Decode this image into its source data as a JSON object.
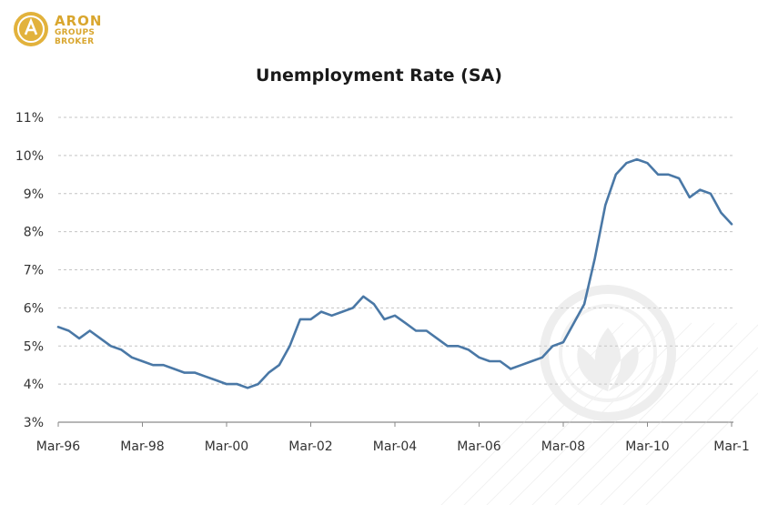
{
  "brand": {
    "line1": "ARON",
    "line2": "GROUPS",
    "line3": "BROKER",
    "color": "#d9a62e"
  },
  "chart_data": {
    "type": "line",
    "title": "Unemployment Rate (SA)",
    "xlabel": "",
    "ylabel": "",
    "ylim": [
      3,
      11
    ],
    "yticks": [
      "3%",
      "4%",
      "5%",
      "6%",
      "7%",
      "8%",
      "9%",
      "10%",
      "11%"
    ],
    "xticks": [
      "Mar-96",
      "Mar-98",
      "Mar-00",
      "Mar-02",
      "Mar-04",
      "Mar-06",
      "Mar-08",
      "Mar-10",
      "Mar-1"
    ],
    "grid": true,
    "line_color": "#4a78a6",
    "series": [
      {
        "x": [
          "1996-03",
          "1996-06",
          "1996-09",
          "1996-12",
          "1997-03",
          "1997-06",
          "1997-09",
          "1997-12",
          "1998-03",
          "1998-06",
          "1998-09",
          "1998-12",
          "1999-03",
          "1999-06",
          "1999-09",
          "1999-12",
          "2000-03",
          "2000-06",
          "2000-09",
          "2000-12",
          "2001-03",
          "2001-06",
          "2001-09",
          "2001-12",
          "2002-03",
          "2002-06",
          "2002-09",
          "2002-12",
          "2003-03",
          "2003-06",
          "2003-09",
          "2003-12",
          "2004-03",
          "2004-06",
          "2004-09",
          "2004-12",
          "2005-03",
          "2005-06",
          "2005-09",
          "2005-12",
          "2006-03",
          "2006-06",
          "2006-09",
          "2006-12",
          "2007-03",
          "2007-06",
          "2007-09",
          "2007-12",
          "2008-03",
          "2008-06",
          "2008-09",
          "2008-12",
          "2009-03",
          "2009-06",
          "2009-09",
          "2009-12",
          "2010-03",
          "2010-06",
          "2010-09",
          "2010-12",
          "2011-03",
          "2011-06",
          "2011-09",
          "2011-12",
          "2012-03"
        ],
        "values": [
          5.5,
          5.4,
          5.2,
          5.4,
          5.2,
          5.0,
          4.9,
          4.7,
          4.6,
          4.5,
          4.5,
          4.4,
          4.3,
          4.3,
          4.2,
          4.1,
          4.0,
          4.0,
          3.9,
          4.0,
          4.3,
          4.5,
          5.0,
          5.7,
          5.7,
          5.9,
          5.8,
          5.9,
          6.0,
          6.3,
          6.1,
          5.7,
          5.8,
          5.6,
          5.4,
          5.4,
          5.2,
          5.0,
          5.0,
          4.9,
          4.7,
          4.6,
          4.6,
          4.4,
          4.5,
          4.6,
          4.7,
          5.0,
          5.1,
          5.6,
          6.1,
          7.3,
          8.7,
          9.5,
          9.8,
          9.9,
          9.8,
          9.5,
          9.5,
          9.4,
          8.9,
          9.1,
          9.0,
          8.5,
          8.2
        ]
      }
    ]
  }
}
